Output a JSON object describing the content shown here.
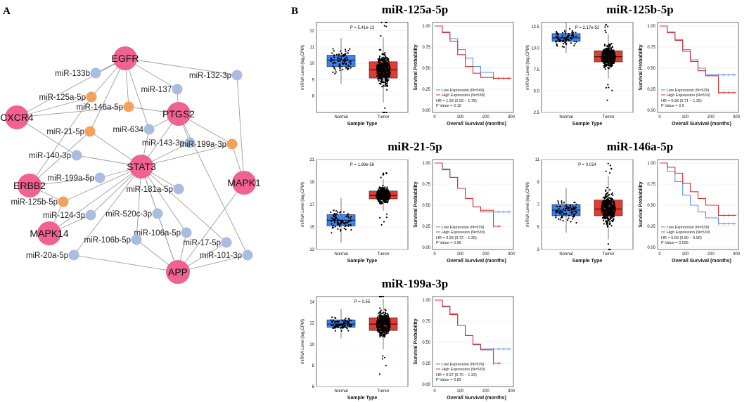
{
  "panel_a": {
    "label": "A",
    "colors": {
      "gene": "#f06292",
      "mirna_blue": "#a8bde0",
      "mirna_orange": "#f4a259",
      "edge": "#9e9e9e"
    },
    "genes": [
      {
        "id": "EGFR",
        "label": "EGFR"
      },
      {
        "id": "PTGS2",
        "label": "PTGS2"
      },
      {
        "id": "CXCR4",
        "label": "CXCR4"
      },
      {
        "id": "STAT3",
        "label": "STAT3"
      },
      {
        "id": "ERBB2",
        "label": "ERBB2"
      },
      {
        "id": "MAPK1",
        "label": "MAPK1"
      },
      {
        "id": "MAPK14",
        "label": "MAPK14"
      },
      {
        "id": "APP",
        "label": "APP"
      }
    ],
    "mirnas": [
      {
        "id": "m133b",
        "label": "miR-133b",
        "color": "blue"
      },
      {
        "id": "m132",
        "label": "miR-132-3p",
        "color": "blue"
      },
      {
        "id": "m137",
        "label": "miR-137",
        "color": "blue"
      },
      {
        "id": "m125a",
        "label": "miR-125a-5p",
        "color": "orange"
      },
      {
        "id": "m146a",
        "label": "miR-146a-5p",
        "color": "orange"
      },
      {
        "id": "m21",
        "label": "miR-21-5p",
        "color": "orange"
      },
      {
        "id": "m634",
        "label": "miR-634",
        "color": "blue"
      },
      {
        "id": "m143",
        "label": "miR-143-3p",
        "color": "blue"
      },
      {
        "id": "m199a3",
        "label": "miR-199a-3p",
        "color": "orange"
      },
      {
        "id": "m140",
        "label": "miR-140-3p",
        "color": "blue"
      },
      {
        "id": "m199a5",
        "label": "miR-199a-5p",
        "color": "blue"
      },
      {
        "id": "m181a",
        "label": "miR-181a-5p",
        "color": "blue"
      },
      {
        "id": "m125b",
        "label": "miR-125b-5p",
        "color": "orange"
      },
      {
        "id": "m124",
        "label": "miR-124-3p",
        "color": "blue"
      },
      {
        "id": "m520c",
        "label": "miR-520c-3p",
        "color": "blue"
      },
      {
        "id": "m106a",
        "label": "miR-106a-5p",
        "color": "blue"
      },
      {
        "id": "m106b",
        "label": "miR-106b-5p",
        "color": "blue"
      },
      {
        "id": "m17",
        "label": "miR-17-5p",
        "color": "blue"
      },
      {
        "id": "m20a",
        "label": "miR-20a-5p",
        "color": "blue"
      },
      {
        "id": "m101",
        "label": "miR-101-3p",
        "color": "blue"
      }
    ],
    "edges": [
      [
        "EGFR",
        "m133b"
      ],
      [
        "EGFR",
        "m132"
      ],
      [
        "EGFR",
        "m137"
      ],
      [
        "EGFR",
        "m125a"
      ],
      [
        "EGFR",
        "m146a"
      ],
      [
        "EGFR",
        "m634"
      ],
      [
        "EGFR",
        "CXCR4"
      ],
      [
        "EGFR",
        "m21"
      ],
      [
        "PTGS2",
        "m137"
      ],
      [
        "PTGS2",
        "m146a"
      ],
      [
        "PTGS2",
        "m143"
      ],
      [
        "PTGS2",
        "m199a3"
      ],
      [
        "PTGS2",
        "m634"
      ],
      [
        "PTGS2",
        "STAT3"
      ],
      [
        "PTGS2",
        "m101"
      ],
      [
        "m132",
        "MAPK1"
      ],
      [
        "m199a3",
        "MAPK1"
      ],
      [
        "CXCR4",
        "m125a"
      ],
      [
        "CXCR4",
        "m146a"
      ],
      [
        "CXCR4",
        "m140"
      ],
      [
        "STAT3",
        "m21"
      ],
      [
        "STAT3",
        "m634"
      ],
      [
        "STAT3",
        "m143"
      ],
      [
        "STAT3",
        "m140"
      ],
      [
        "STAT3",
        "m199a5"
      ],
      [
        "STAT3",
        "m181a"
      ],
      [
        "STAT3",
        "m125b"
      ],
      [
        "STAT3",
        "m124"
      ],
      [
        "STAT3",
        "m520c"
      ],
      [
        "STAT3",
        "m106a"
      ],
      [
        "STAT3",
        "m106b"
      ],
      [
        "STAT3",
        "m17"
      ],
      [
        "STAT3",
        "m20a"
      ],
      [
        "STAT3",
        "m199a3"
      ],
      [
        "STAT3",
        "MAPK14"
      ],
      [
        "STAT3",
        "APP"
      ],
      [
        "ERBB2",
        "m125a"
      ],
      [
        "ERBB2",
        "m21"
      ],
      [
        "ERBB2",
        "m199a5"
      ],
      [
        "ERBB2",
        "m125b"
      ],
      [
        "MAPK14",
        "m125b"
      ],
      [
        "MAPK14",
        "m124"
      ],
      [
        "APP",
        "m20a"
      ],
      [
        "APP",
        "m106b"
      ],
      [
        "APP",
        "m520c"
      ],
      [
        "APP",
        "m106a"
      ],
      [
        "APP",
        "m17"
      ],
      [
        "APP",
        "m101"
      ],
      [
        "APP",
        "MAPK1"
      ]
    ]
  },
  "panel_b": {
    "label": "B",
    "box_ylabel": "miRNA Level (log₂CPM)",
    "box_xlabel": "Sample Type",
    "groups": [
      "Normal",
      "Tumor"
    ],
    "surv_ylabel": "Survival Probability",
    "surv_xlabel": "Overall Survival (months)",
    "surv_xticks": [
      "0",
      "100",
      "200",
      "300"
    ],
    "surv_yticks": [
      "0.00",
      "0.25",
      "0.50",
      "0.75",
      "1.00"
    ],
    "colors": {
      "normal": "#3b82f6",
      "tumor": "#e03c31",
      "low": "#5b8def",
      "high": "#e0302a"
    },
    "panels": [
      {
        "title": "miR-125a-5p",
        "p_box": "P = 5.41e-13",
        "yticks": [
          "8",
          "9",
          "10",
          "11",
          "12"
        ],
        "ylim": [
          7,
          12.5
        ],
        "normal": {
          "q1": 9.8,
          "median": 10.2,
          "q3": 10.5
        },
        "tumor": {
          "q1": 9.1,
          "median": 9.6,
          "q3": 10.1
        },
        "legend_low": "Low Expression (N=540)",
        "legend_high": "High Expression (N=538)",
        "hr": "HR = 1.28 (0.93 − 1.78)",
        "p_surv": "P Value = 0.12",
        "low_curve": [
          [
            0,
            1
          ],
          [
            30,
            0.93
          ],
          [
            60,
            0.85
          ],
          [
            90,
            0.72
          ],
          [
            120,
            0.62
          ],
          [
            150,
            0.52
          ],
          [
            180,
            0.45
          ],
          [
            230,
            0.38
          ],
          [
            300,
            0.38
          ]
        ],
        "high_curve": [
          [
            0,
            1
          ],
          [
            30,
            0.92
          ],
          [
            60,
            0.82
          ],
          [
            90,
            0.66
          ],
          [
            120,
            0.52
          ],
          [
            150,
            0.44
          ],
          [
            180,
            0.39
          ],
          [
            230,
            0.38
          ],
          [
            300,
            0.38
          ]
        ]
      },
      {
        "title": "miR-125b-5p",
        "p_box": "P = 2.17e-52",
        "yticks": [
          "2.5",
          "5.0",
          "7.5",
          "10.0",
          "12.5"
        ],
        "ylim": [
          2.5,
          13
        ],
        "normal": {
          "q1": 10.8,
          "median": 11.2,
          "q3": 11.7
        },
        "tumor": {
          "q1": 8.4,
          "median": 9.0,
          "q3": 9.7
        },
        "legend_low": "Low Expression (N=539)",
        "legend_high": "High Expression (N=539)",
        "hr": "HR = 0.98 (0.71 − 1.35)",
        "p_surv": "P Value = 0.9",
        "low_curve": [
          [
            0,
            1
          ],
          [
            30,
            0.93
          ],
          [
            60,
            0.84
          ],
          [
            90,
            0.72
          ],
          [
            120,
            0.6
          ],
          [
            150,
            0.5
          ],
          [
            180,
            0.42
          ],
          [
            230,
            0.42
          ],
          [
            300,
            0.42
          ]
        ],
        "high_curve": [
          [
            0,
            1
          ],
          [
            30,
            0.92
          ],
          [
            60,
            0.83
          ],
          [
            90,
            0.7
          ],
          [
            120,
            0.58
          ],
          [
            150,
            0.47
          ],
          [
            180,
            0.41
          ],
          [
            230,
            0.21
          ],
          [
            300,
            0.21
          ]
        ]
      },
      {
        "title": "miR-21-5p",
        "p_box": "P = 1.98e-56",
        "yticks": [
          "13",
          "15",
          "17",
          "19",
          "21"
        ],
        "ylim": [
          13,
          21
        ],
        "normal": {
          "q1": 15.1,
          "median": 15.6,
          "q3": 16.1
        },
        "tumor": {
          "q1": 17.5,
          "median": 17.8,
          "q3": 18.2
        },
        "legend_low": "Low Expression (N=539)",
        "legend_high": "High Expression (N=539)",
        "hr": "HR = 0.99 (0.72 − 1.36)",
        "p_surv": "P Value = 0.96",
        "low_curve": [
          [
            0,
            1
          ],
          [
            30,
            0.93
          ],
          [
            60,
            0.83
          ],
          [
            90,
            0.7
          ],
          [
            120,
            0.58
          ],
          [
            150,
            0.48
          ],
          [
            180,
            0.42
          ],
          [
            230,
            0.42
          ],
          [
            300,
            0.42
          ]
        ],
        "high_curve": [
          [
            0,
            1
          ],
          [
            30,
            0.92
          ],
          [
            60,
            0.83
          ],
          [
            90,
            0.7
          ],
          [
            120,
            0.58
          ],
          [
            150,
            0.48
          ],
          [
            180,
            0.44
          ],
          [
            230,
            0.25
          ],
          [
            260,
            0.25
          ]
        ]
      },
      {
        "title": "miR-146a-5p",
        "p_box": "P = 0.014",
        "yticks": [
          "3",
          "5",
          "7",
          "9",
          "11"
        ],
        "ylim": [
          3,
          11
        ],
        "normal": {
          "q1": 6.0,
          "median": 6.5,
          "q3": 7.0
        },
        "tumor": {
          "q1": 6.0,
          "median": 6.6,
          "q3": 7.4
        },
        "legend_low": "Low Expression (N=539)",
        "legend_high": "High Expression (N=539)",
        "hr": "HR = 0.69 (0.50 − 0.96)",
        "p_surv": "P Value = 0.025",
        "low_curve": [
          [
            0,
            1
          ],
          [
            30,
            0.9
          ],
          [
            60,
            0.78
          ],
          [
            90,
            0.62
          ],
          [
            120,
            0.5
          ],
          [
            150,
            0.42
          ],
          [
            180,
            0.35
          ],
          [
            230,
            0.28
          ],
          [
            300,
            0.28
          ]
        ],
        "high_curve": [
          [
            0,
            1
          ],
          [
            30,
            0.95
          ],
          [
            60,
            0.88
          ],
          [
            90,
            0.76
          ],
          [
            120,
            0.66
          ],
          [
            150,
            0.58
          ],
          [
            180,
            0.5
          ],
          [
            230,
            0.38
          ],
          [
            300,
            0.38
          ]
        ]
      },
      {
        "title": "miR-199a-3p",
        "p_box": "P = 0.55",
        "yticks": [
          "6",
          "8",
          "10",
          "12",
          "14"
        ],
        "ylim": [
          6,
          14.5
        ],
        "normal": {
          "q1": 11.6,
          "median": 11.9,
          "q3": 12.3
        },
        "tumor": {
          "q1": 11.3,
          "median": 11.9,
          "q3": 12.5
        },
        "legend_low": "Low Expression (N=539)",
        "legend_high": "High Expression (N=539)",
        "hr": "HR = 0.97 (0.70 − 1.33)",
        "p_surv": "P Value = 0.83",
        "low_curve": [
          [
            0,
            1
          ],
          [
            30,
            0.93
          ],
          [
            60,
            0.84
          ],
          [
            90,
            0.7
          ],
          [
            120,
            0.58
          ],
          [
            150,
            0.48
          ],
          [
            180,
            0.42
          ],
          [
            230,
            0.42
          ],
          [
            300,
            0.42
          ]
        ],
        "high_curve": [
          [
            0,
            1
          ],
          [
            30,
            0.92
          ],
          [
            60,
            0.83
          ],
          [
            90,
            0.7
          ],
          [
            120,
            0.58
          ],
          [
            150,
            0.47
          ],
          [
            180,
            0.41
          ],
          [
            230,
            0.25
          ],
          [
            260,
            0.25
          ]
        ]
      }
    ]
  }
}
